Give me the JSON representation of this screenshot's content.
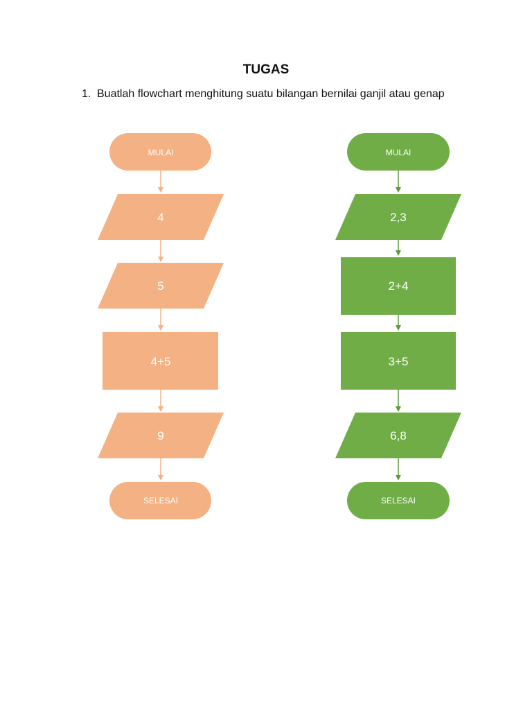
{
  "document": {
    "title": "TUGAS",
    "task_number": "1.",
    "task_text": "Buatlah flowchart menghitung suatu bilangan bernilai ganjil atau genap"
  },
  "colors": {
    "left_fill": "#F4B183",
    "left_line": "#F4B183",
    "right_fill": "#70AD47",
    "right_line": "#5E9A3B"
  },
  "flowcharts": {
    "left": {
      "nodes": [
        {
          "type": "terminator",
          "label": "MULAI"
        },
        {
          "type": "input-output",
          "label": "4"
        },
        {
          "type": "input-output",
          "label": "5"
        },
        {
          "type": "process",
          "label": "4+5"
        },
        {
          "type": "input-output",
          "label": "9"
        },
        {
          "type": "terminator",
          "label": "SELESAI"
        }
      ]
    },
    "right": {
      "nodes": [
        {
          "type": "terminator",
          "label": "MULAI"
        },
        {
          "type": "input-output",
          "label": "2,3"
        },
        {
          "type": "process",
          "label": "2+4"
        },
        {
          "type": "process",
          "label": "3+5"
        },
        {
          "type": "input-output",
          "label": "6,8"
        },
        {
          "type": "terminator",
          "label": "SELESAI"
        }
      ]
    }
  }
}
